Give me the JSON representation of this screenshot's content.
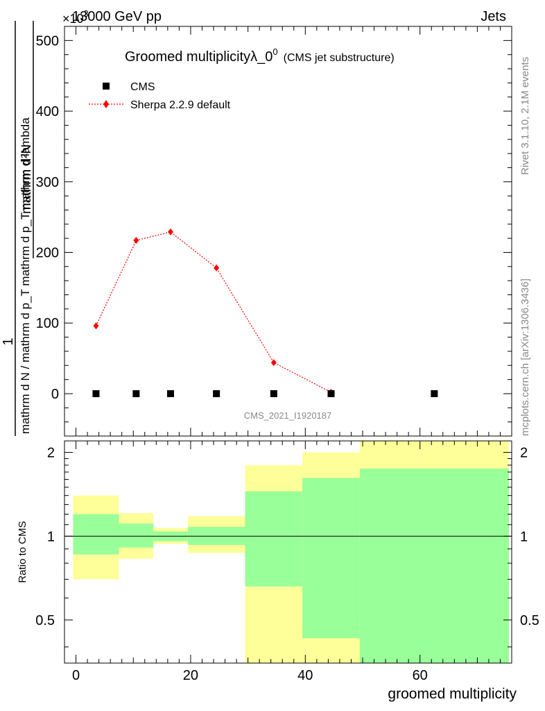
{
  "header": {
    "energy_label": "13000 GeV pp",
    "category_label": "Jets",
    "exponent_label": "×10",
    "exponent_power": "3"
  },
  "side": {
    "rivet_label": "Rivet 3.1.10,  2.1M events",
    "mcplots_label": "mcplots.cern.ch [arXiv:1306.3436]"
  },
  "main_plot": {
    "title": "Groomed multiplicityλ_0",
    "title_sup": "0",
    "title_small": "(CMS jet substructure)",
    "watermark": "CMS_2021_I1920187",
    "ylabel_numerator": "mathrm d²N",
    "ylabel_denominator": "mathrm d N / mathrm d p_T mathrm d p_T mathrm d lambda",
    "ylabel_one": "1",
    "legend": [
      {
        "label": "CMS",
        "color": "#000000",
        "marker": "square"
      },
      {
        "label": "Sherpa 2.2.9 default",
        "color": "#ff0000",
        "marker": "diamond"
      }
    ]
  },
  "ratio_plot": {
    "ylabel": "Ratio to CMS",
    "xlabel": "groomed multiplicity"
  },
  "chart_data": [
    {
      "type": "scatter",
      "title": "Groomed multiplicityλ_0^0 (CMS jet substructure)",
      "xlabel": "groomed multiplicity",
      "ylabel": "1/(dN/dpT) d²N/(dpT dλ)",
      "y_scale": 1000,
      "xlim": [
        -2,
        76
      ],
      "ylim": [
        -60,
        520
      ],
      "yticks": [
        0,
        100,
        200,
        300,
        400,
        500
      ],
      "series": [
        {
          "name": "CMS",
          "color": "#000000",
          "x": [
            3.5,
            10.5,
            16.5,
            24.5,
            34.5,
            44.5,
            62.5
          ],
          "y": [
            0,
            0,
            0,
            0,
            0,
            0,
            0
          ]
        },
        {
          "name": "Sherpa 2.2.9 default",
          "color": "#ff0000",
          "style": "dotted-line",
          "x": [
            3.5,
            10.5,
            16.5,
            24.5,
            34.5,
            44.5
          ],
          "y": [
            96,
            217,
            229,
            178,
            44,
            2
          ]
        }
      ]
    },
    {
      "type": "area",
      "title": "Ratio to CMS",
      "xlabel": "groomed multiplicity",
      "ylabel": "Ratio to CMS",
      "xlim": [
        -2,
        76
      ],
      "ylim": [
        0.35,
        2.2
      ],
      "y_scale": "log",
      "yticks": [
        0.5,
        1,
        2
      ],
      "xticks": [
        0,
        20,
        40,
        60
      ],
      "reference_line": 1,
      "bins": [
        {
          "xlo": -0.5,
          "xhi": 7.5,
          "stat_lo": 0.86,
          "stat_hi": 1.2,
          "tot_lo": 0.7,
          "tot_hi": 1.4
        },
        {
          "xlo": 7.5,
          "xhi": 13.5,
          "stat_lo": 0.91,
          "stat_hi": 1.11,
          "tot_lo": 0.83,
          "tot_hi": 1.21
        },
        {
          "xlo": 13.5,
          "xhi": 19.5,
          "stat_lo": 0.96,
          "stat_hi": 1.04,
          "tot_lo": 0.94,
          "tot_hi": 1.07
        },
        {
          "xlo": 19.5,
          "xhi": 29.5,
          "stat_lo": 0.93,
          "stat_hi": 1.08,
          "tot_lo": 0.87,
          "tot_hi": 1.18
        },
        {
          "xlo": 29.5,
          "xhi": 39.5,
          "stat_lo": 0.66,
          "stat_hi": 1.45,
          "tot_lo": 0.35,
          "tot_hi": 1.8
        },
        {
          "xlo": 39.5,
          "xhi": 49.5,
          "stat_lo": 0.43,
          "stat_hi": 1.62,
          "tot_lo": 0.35,
          "tot_hi": 2.0
        },
        {
          "xlo": 49.5,
          "xhi": 75.5,
          "stat_lo": 0.35,
          "stat_hi": 1.75,
          "tot_lo": 0.35,
          "tot_hi": 2.2
        }
      ],
      "colors": {
        "stat": "#99ff99",
        "total": "#ffff99"
      }
    }
  ]
}
